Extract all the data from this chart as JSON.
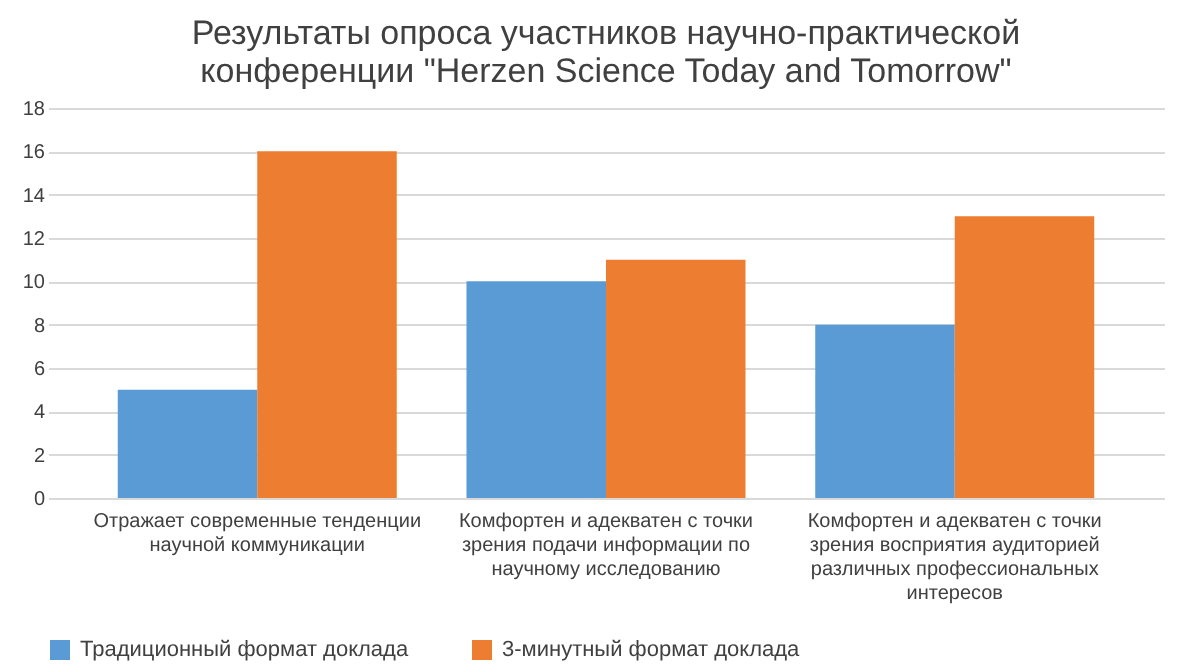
{
  "chart_data": {
    "type": "bar",
    "title": "Результаты опроса участников научно-практической конференции \"Herzen Science Today and Tomorrow\"",
    "categories": [
      "Отражает современные тенденции научной коммуникации",
      "Комфортен и адекватен с точки зрения подачи информации по научному исследованию",
      "Комфортен и адекватен с точки зрения восприятия аудиторией различных профессиональных интересов"
    ],
    "series": [
      {
        "name": "Традиционный формат доклада",
        "color": "#5b9bd5",
        "values": [
          5,
          10,
          8
        ]
      },
      {
        "name": "3-минутный формат доклада",
        "color": "#ed7d31",
        "values": [
          16,
          11,
          13
        ]
      }
    ],
    "ylim": [
      0,
      18
    ],
    "yticks": [
      0,
      2,
      4,
      6,
      8,
      10,
      12,
      14,
      16,
      18
    ],
    "grid": "y",
    "legend": "bottom"
  }
}
